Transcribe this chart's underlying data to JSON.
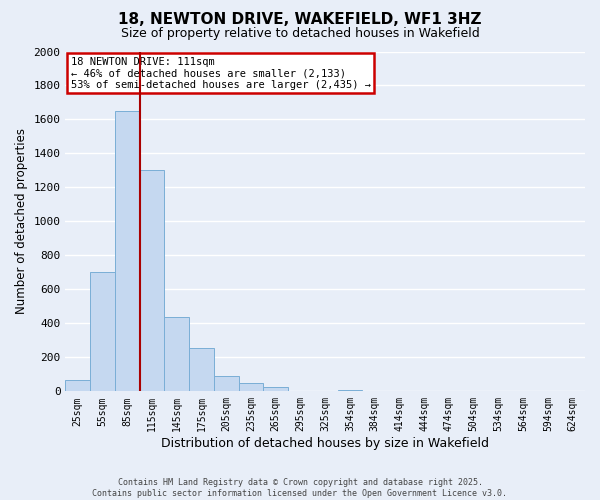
{
  "title": "18, NEWTON DRIVE, WAKEFIELD, WF1 3HZ",
  "subtitle": "Size of property relative to detached houses in Wakefield",
  "xlabel": "Distribution of detached houses by size in Wakefield",
  "ylabel": "Number of detached properties",
  "bar_labels": [
    "25sqm",
    "55sqm",
    "85sqm",
    "115sqm",
    "145sqm",
    "175sqm",
    "205sqm",
    "235sqm",
    "265sqm",
    "295sqm",
    "325sqm",
    "354sqm",
    "384sqm",
    "414sqm",
    "444sqm",
    "474sqm",
    "504sqm",
    "534sqm",
    "564sqm",
    "594sqm",
    "624sqm"
  ],
  "bar_values": [
    65,
    700,
    1650,
    1300,
    440,
    255,
    90,
    50,
    25,
    0,
    0,
    10,
    0,
    0,
    0,
    0,
    0,
    0,
    0,
    0,
    0
  ],
  "bar_color": "#c5d8f0",
  "bar_edge_color": "#7aaed6",
  "vline_color": "#aa0000",
  "vline_index": 3,
  "ylim": [
    0,
    2000
  ],
  "yticks": [
    0,
    200,
    400,
    600,
    800,
    1000,
    1200,
    1400,
    1600,
    1800,
    2000
  ],
  "annotation_title": "18 NEWTON DRIVE: 111sqm",
  "annotation_line1": "← 46% of detached houses are smaller (2,133)",
  "annotation_line2": "53% of semi-detached houses are larger (2,435) →",
  "annotation_box_color": "#ffffff",
  "annotation_box_edge": "#cc0000",
  "footer_line1": "Contains HM Land Registry data © Crown copyright and database right 2025.",
  "footer_line2": "Contains public sector information licensed under the Open Government Licence v3.0.",
  "bg_color": "#e8eef8",
  "grid_color": "#ffffff",
  "title_fontsize": 11,
  "subtitle_fontsize": 9
}
